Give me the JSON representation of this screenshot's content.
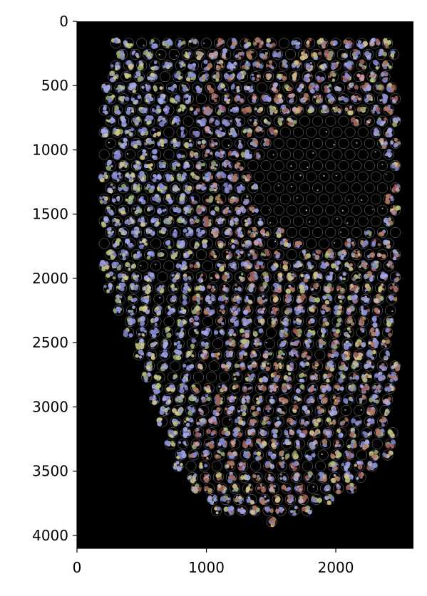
{
  "chart_data": {
    "type": "image",
    "title": "",
    "xlabel": "",
    "ylabel": "",
    "xlim": [
      0,
      2600
    ],
    "ylim": [
      4100,
      0
    ],
    "y_inverted": true,
    "background_color": "#000000",
    "grid": false,
    "legend": "none",
    "x_ticks": [
      0,
      1000,
      2000
    ],
    "x_tick_labels": [
      "0",
      "1000",
      "2000"
    ],
    "y_ticks": [
      0,
      500,
      1000,
      1500,
      2000,
      2500,
      3000,
      3500,
      4000
    ],
    "y_tick_labels": [
      "0",
      "500",
      "1000",
      "1500",
      "2000",
      "2500",
      "3000",
      "3500",
      "4000"
    ],
    "spot_spacing": 100,
    "spot_radius": 40,
    "spot_outline_color": "#8a8a8a",
    "tissue_palette": [
      "#8b90d6",
      "#a3a8e6",
      "#7c80c4",
      "#9c5d55",
      "#b07a62",
      "#b7c27a",
      "#d4c48a",
      "#8fa36a",
      "#c9a0a8"
    ]
  }
}
